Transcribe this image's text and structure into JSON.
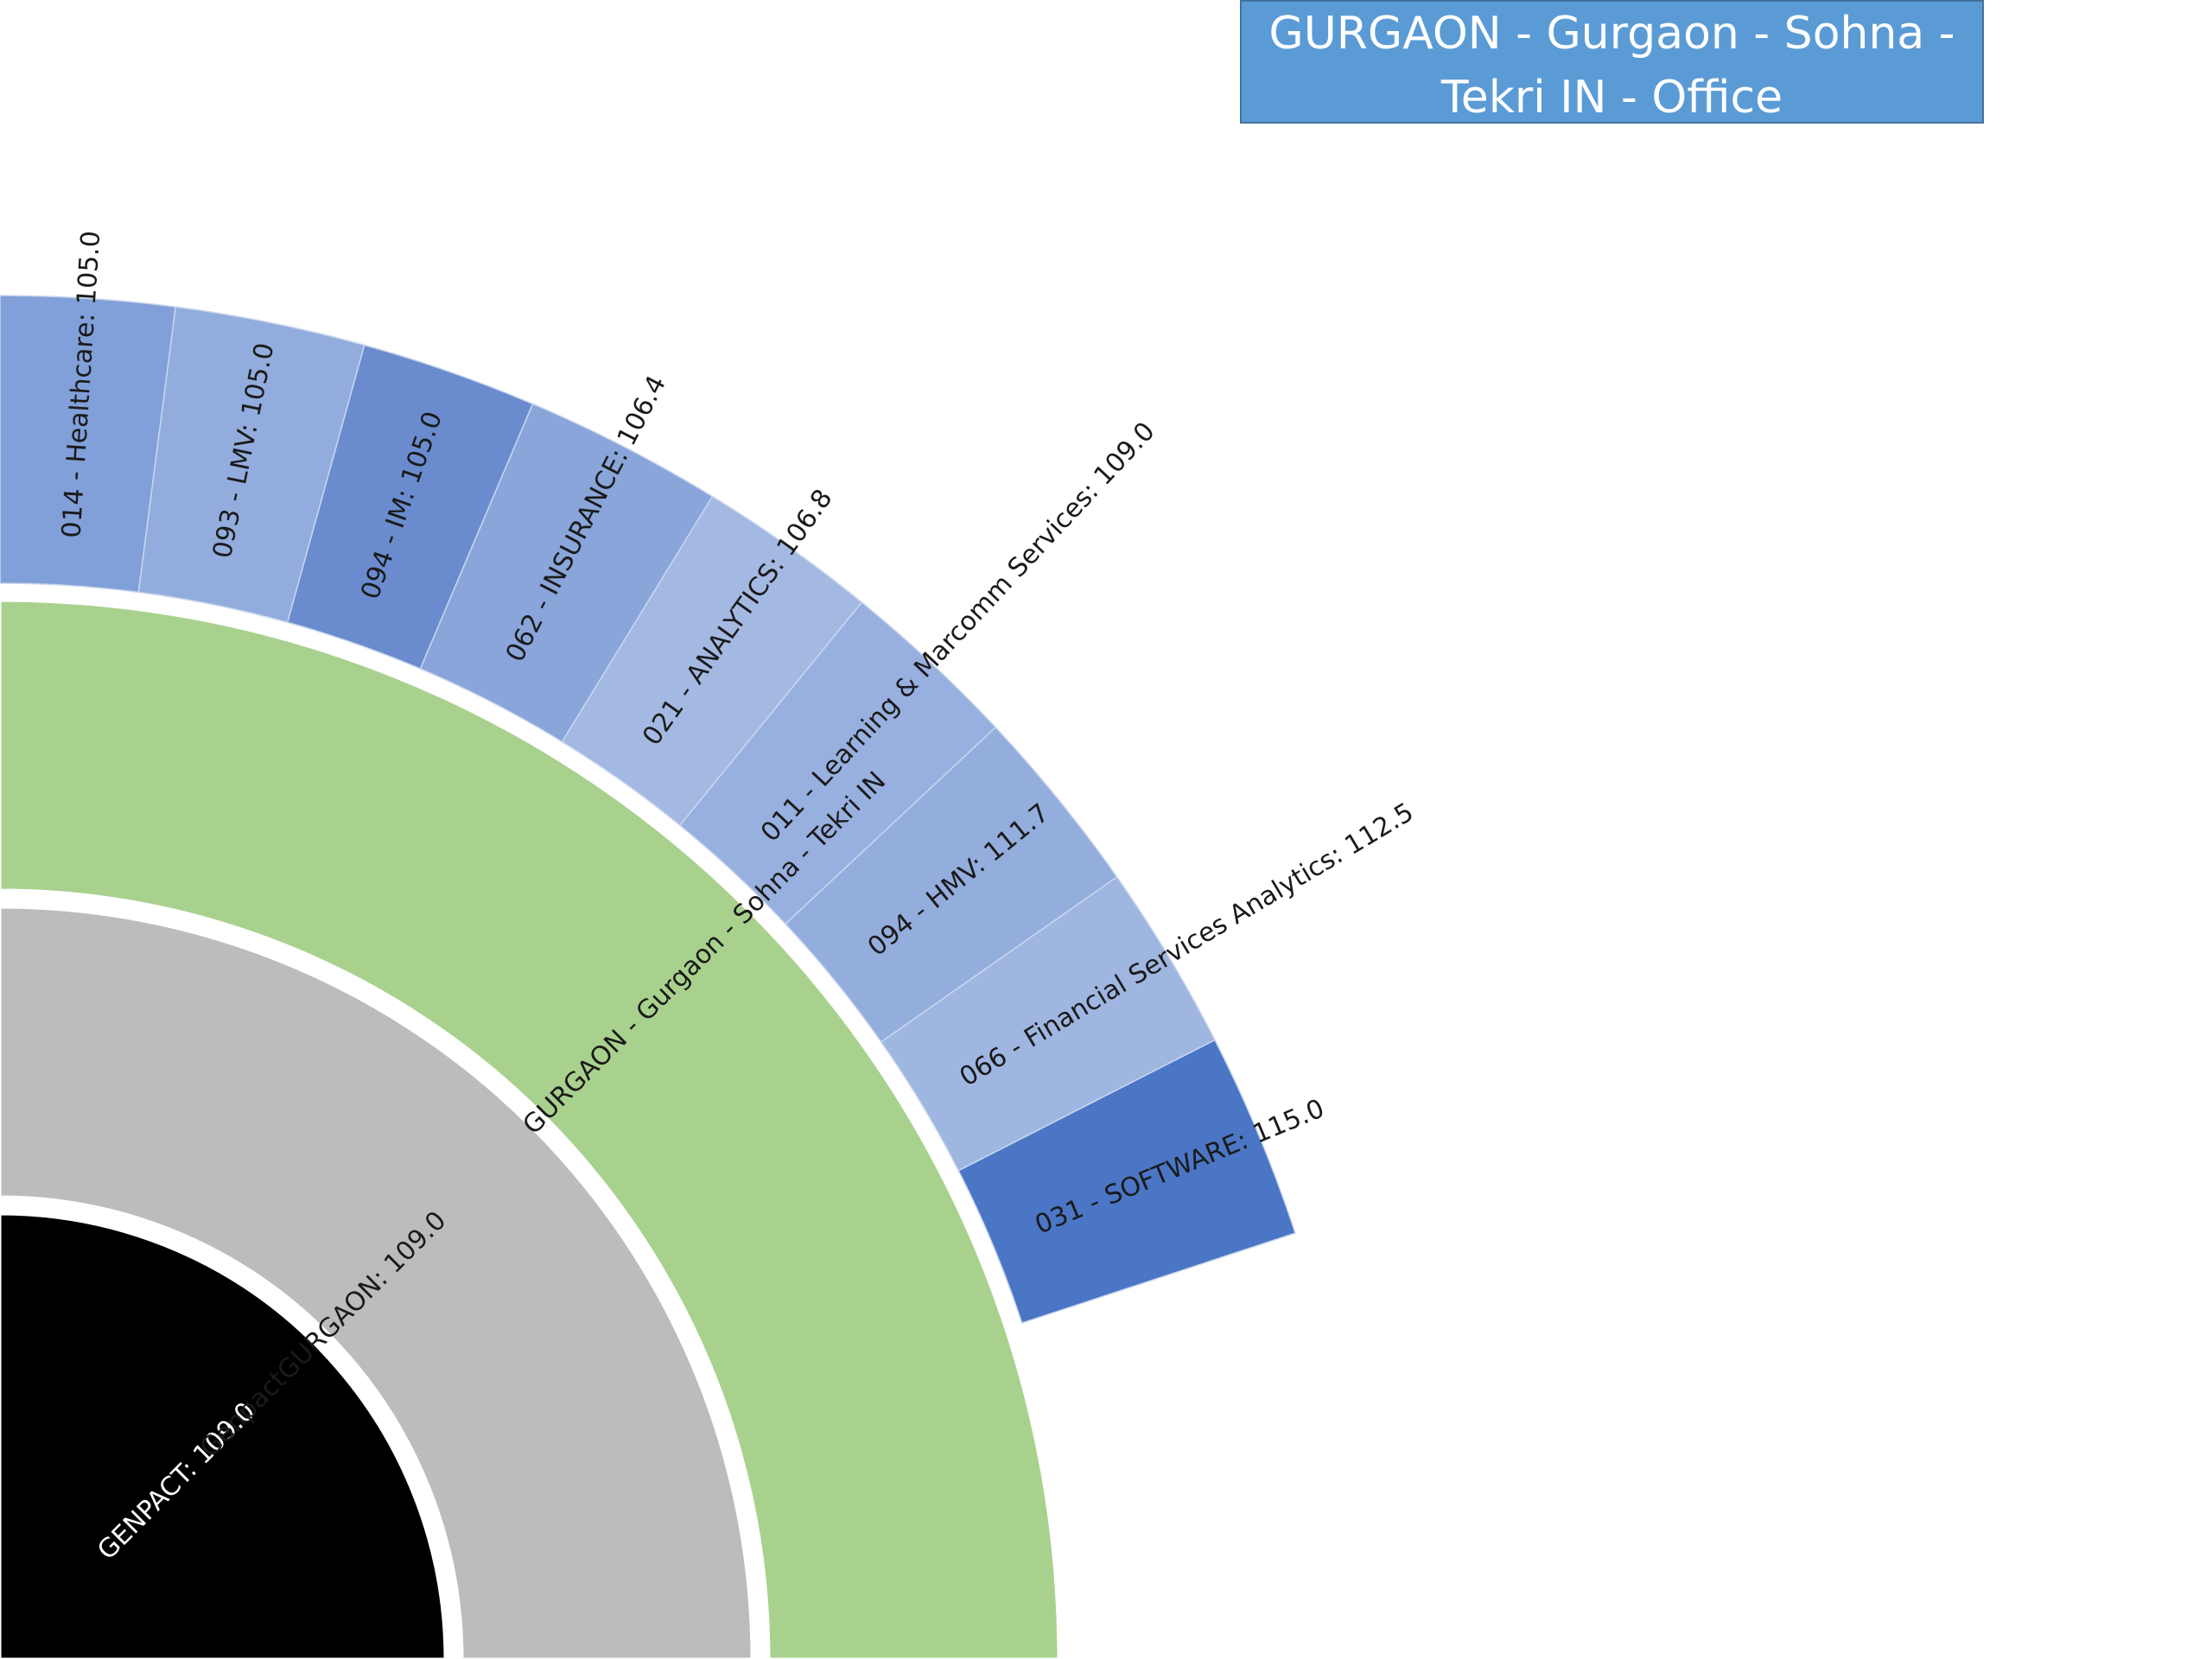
{
  "callout": {
    "line1": "GURGAON - Gurgaon - Sohna -",
    "line2": "Tekri IN - Office"
  },
  "chart_data": {
    "type": "sunburst",
    "rings": [
      {
        "level": 1,
        "segments": [
          {
            "label": "GENPACT: 109.0",
            "value": 109.0,
            "color": "#000000",
            "text_color": "#ffffff"
          }
        ]
      },
      {
        "level": 2,
        "segments": [
          {
            "label": "GenpactGURGAON: 109.0",
            "value": 109.0,
            "color": "#bcbcbc",
            "text_color": "#1a1a1a"
          }
        ]
      },
      {
        "level": 3,
        "segments": [
          {
            "label": "GURGAON - Gurgaon - Sohna - Tekri IN",
            "value": 109.0,
            "color": "#a9d18e",
            "text_color": "#1a1a1a"
          }
        ]
      },
      {
        "level": 4,
        "segments": [
          {
            "label": "014 - Healthcare: 105.0",
            "value": 105.0,
            "color": "#819fd8",
            "text_color": "#1a1a1a"
          },
          {
            "label": "093 - LMV: 105.0",
            "value": 105.0,
            "color": "#92acdd",
            "text_color": "#1a1a1a"
          },
          {
            "label": "094 - IM: 105.0",
            "value": 105.0,
            "color": "#6a8ccf",
            "text_color": "#1a1a1a"
          },
          {
            "label": "062 - INSURANCE: 106.4",
            "value": 106.4,
            "color": "#89a5da",
            "text_color": "#1a1a1a"
          },
          {
            "label": "021 - ANALYTICS: 106.8",
            "value": 106.8,
            "color": "#a4b9e2",
            "text_color": "#1a1a1a"
          },
          {
            "label": "011 - Learning & Marcomm Services: 109.0",
            "value": 109.0,
            "color": "#98b0df",
            "text_color": "#1a1a1a"
          },
          {
            "label": "094 - HMV: 111.7",
            "value": 111.7,
            "color": "#93addd",
            "text_color": "#1a1a1a"
          },
          {
            "label": "066 - Financial Services Analytics: 112.5",
            "value": 112.5,
            "color": "#9fb6e1",
            "text_color": "#1a1a1a"
          },
          {
            "label": "031 - SOFTWARE: 115.0",
            "value": 115.0,
            "color": "#4a76c5",
            "text_color": "#1a1a1a"
          }
        ]
      }
    ]
  }
}
